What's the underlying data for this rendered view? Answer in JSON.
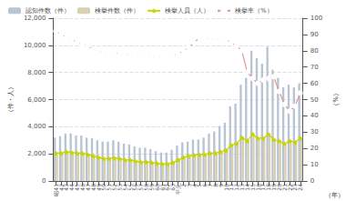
{
  "chart_data": {
    "type": "bar",
    "xlabel": "（年）",
    "ylabel": "（件・人）",
    "y2label": "（%）",
    "categories": [
      "昭41",
      "42",
      "43",
      "44",
      "45",
      "46",
      "47",
      "48",
      "49",
      "50",
      "51",
      "52",
      "53",
      "54",
      "55",
      "56",
      "57",
      "58",
      "59",
      "60",
      "61",
      "62",
      "63",
      "平元",
      "2",
      "3",
      "4",
      "5",
      "6",
      "7",
      "8",
      "9",
      "10",
      "11",
      "12",
      "13",
      "14",
      "15",
      "16",
      "17",
      "18",
      "19",
      "20",
      "21",
      "22",
      "23",
      "24"
    ],
    "series": [
      {
        "name": "認知件数（件）",
        "type": "bar",
        "color": "#b8c4d4",
        "values": [
          3200,
          3300,
          3500,
          3500,
          3350,
          3350,
          3200,
          3150,
          3000,
          2900,
          2900,
          3000,
          2900,
          2750,
          2700,
          2550,
          2450,
          2450,
          2350,
          2200,
          2100,
          2100,
          2300,
          2600,
          2850,
          2900,
          3050,
          3050,
          3200,
          3500,
          3650,
          4050,
          4300,
          5500,
          5700,
          7100,
          7600,
          9600,
          9050,
          8650,
          9900,
          8200,
          7600,
          6900,
          7100,
          6900,
          7200
        ]
      },
      {
        "name": "検挙件数（件）",
        "type": "bar",
        "color": "#d8d0b0",
        "values": [
          2050,
          2050,
          2150,
          2100,
          2050,
          2050,
          1950,
          1850,
          1750,
          1650,
          1650,
          1700,
          1650,
          1550,
          1550,
          1450,
          1400,
          1400,
          1350,
          1300,
          1250,
          1250,
          1350,
          1550,
          1750,
          1850,
          1900,
          1950,
          1950,
          2050,
          2050,
          2150,
          2250,
          2650,
          2750,
          3200,
          2950,
          3450,
          3150,
          3150,
          3450,
          3050,
          2950,
          2750,
          2950,
          2850,
          3150
        ]
      },
      {
        "name": "検挙人員（人）",
        "type": "line",
        "color": "#c8d400",
        "marker": "star",
        "values": [
          2050,
          2050,
          2150,
          2100,
          2050,
          2050,
          1950,
          1850,
          1750,
          1650,
          1650,
          1700,
          1650,
          1550,
          1550,
          1450,
          1400,
          1400,
          1350,
          1300,
          1250,
          1250,
          1350,
          1550,
          1750,
          1850,
          1900,
          1950,
          1950,
          2050,
          2050,
          2150,
          2250,
          2650,
          2750,
          3200,
          2950,
          3450,
          3150,
          3150,
          3450,
          3050,
          2950,
          2750,
          2950,
          2850,
          3150
        ]
      },
      {
        "name": "検挙率（%）",
        "type": "line",
        "color": "#e89090",
        "marker": "circle",
        "axis": "y2",
        "values": [
          92,
          90,
          88,
          87,
          85,
          84,
          83,
          81,
          80,
          79,
          79,
          79,
          78,
          78,
          77,
          77,
          77,
          77,
          77,
          76,
          76,
          76,
          77,
          78,
          80,
          82,
          85,
          88,
          88,
          87,
          87,
          87,
          87,
          85,
          83,
          80,
          67,
          63,
          60,
          62,
          63,
          64,
          55,
          47,
          43,
          46,
          54
        ]
      }
    ],
    "ylim": [
      0,
      12000
    ],
    "yticks": [
      0,
      {
        "value": 2000,
        "label": "2,000"
      },
      {
        "value": 4000,
        "label": "4,000"
      },
      {
        "value": 6000,
        "label": "6,000"
      },
      {
        "value": 8000,
        "label": "8,000"
      },
      {
        "value": 10000,
        "label": "10,000"
      },
      {
        "value": 12000,
        "label": "12,000"
      }
    ],
    "y2lim": [
      0,
      100
    ],
    "y2ticks": [
      0,
      10,
      20,
      30,
      40,
      50,
      60,
      70,
      80,
      90,
      100
    ],
    "grid": true,
    "legend": "upper left"
  }
}
